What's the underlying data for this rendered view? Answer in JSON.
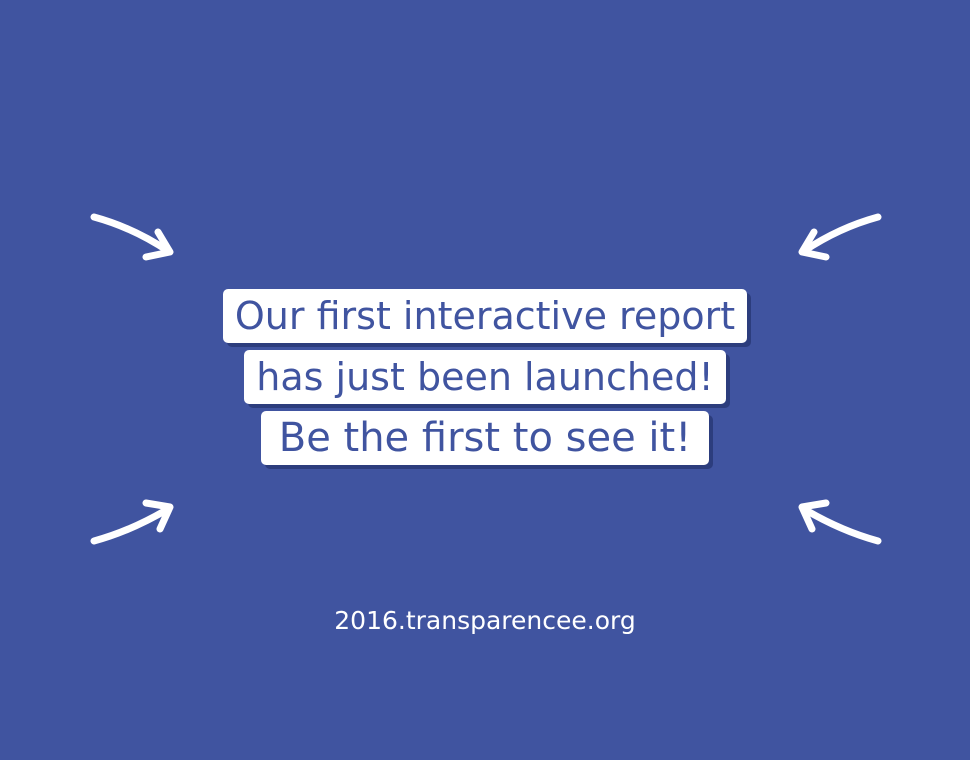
{
  "background_color": "#4054a0",
  "accent_color": "#ffffff",
  "text_color": "#4054a0",
  "headline": {
    "line1": "Our first interactive report",
    "line2": "has just been launched!",
    "line3": "Be the first to see it!"
  },
  "url": "2016.transparencee.org",
  "icons": {
    "top_left": "arrow-down-right-icon",
    "top_right": "arrow-down-left-icon",
    "bottom_left": "arrow-up-right-icon",
    "bottom_right": "arrow-up-left-icon"
  }
}
